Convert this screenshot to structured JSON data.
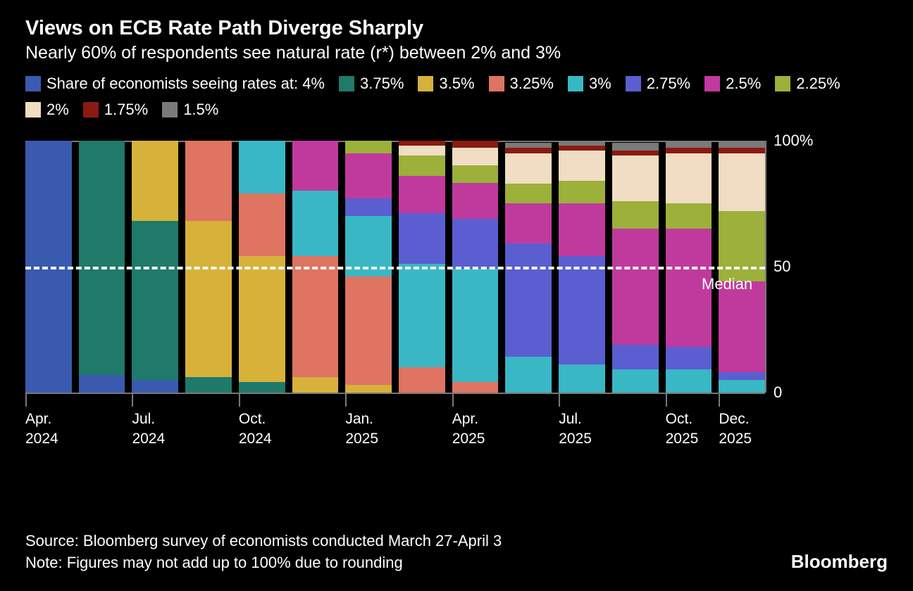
{
  "title": "Views on ECB Rate Path Diverge Sharply",
  "subtitle": "Nearly 60% of respondents see natural rate (r*) between 2% and 3%",
  "legend_prefix": "Share of economists seeing rates at: ",
  "series": [
    {
      "key": "r400",
      "label": "4%",
      "color": "#3a5ab0"
    },
    {
      "key": "r375",
      "label": "3.75%",
      "color": "#1f7a6a"
    },
    {
      "key": "r350",
      "label": "3.5%",
      "color": "#d6b23a"
    },
    {
      "key": "r325",
      "label": "3.25%",
      "color": "#de7461"
    },
    {
      "key": "r300",
      "label": "3%",
      "color": "#3ab7c4"
    },
    {
      "key": "r275",
      "label": "2.75%",
      "color": "#5a5ed1"
    },
    {
      "key": "r250",
      "label": "2.5%",
      "color": "#c03a9e"
    },
    {
      "key": "r225",
      "label": "2.25%",
      "color": "#9cb03a"
    },
    {
      "key": "r200",
      "label": "2%",
      "color": "#f0ddc3"
    },
    {
      "key": "r175",
      "label": "1.75%",
      "color": "#8a1a12"
    },
    {
      "key": "r150",
      "label": "1.5%",
      "color": "#7a7a7a"
    }
  ],
  "categories": [
    {
      "tick": true,
      "label": "Apr.\n2024"
    },
    {
      "tick": false,
      "label": ""
    },
    {
      "tick": true,
      "label": "Jul.\n2024"
    },
    {
      "tick": false,
      "label": ""
    },
    {
      "tick": true,
      "label": "Oct.\n2024"
    },
    {
      "tick": false,
      "label": ""
    },
    {
      "tick": true,
      "label": "Jan.\n2025"
    },
    {
      "tick": false,
      "label": ""
    },
    {
      "tick": true,
      "label": "Apr.\n2025"
    },
    {
      "tick": false,
      "label": ""
    },
    {
      "tick": true,
      "label": "Jul.\n2025"
    },
    {
      "tick": false,
      "label": ""
    },
    {
      "tick": true,
      "label": "Oct.\n2025"
    },
    {
      "tick": true,
      "label": "Dec.\n2025"
    }
  ],
  "data": [
    {
      "r400": 100,
      "r375": 0,
      "r350": 0,
      "r325": 0,
      "r300": 0,
      "r275": 0,
      "r250": 0,
      "r225": 0,
      "r200": 0,
      "r175": 0,
      "r150": 0
    },
    {
      "r400": 7,
      "r375": 93,
      "r350": 0,
      "r325": 0,
      "r300": 0,
      "r275": 0,
      "r250": 0,
      "r225": 0,
      "r200": 0,
      "r175": 0,
      "r150": 0
    },
    {
      "r400": 5,
      "r375": 63,
      "r350": 32,
      "r325": 0,
      "r300": 0,
      "r275": 0,
      "r250": 0,
      "r225": 0,
      "r200": 0,
      "r175": 0,
      "r150": 0
    },
    {
      "r400": 0,
      "r375": 6,
      "r350": 62,
      "r325": 32,
      "r300": 0,
      "r275": 0,
      "r250": 0,
      "r225": 0,
      "r200": 0,
      "r175": 0,
      "r150": 0
    },
    {
      "r400": 0,
      "r375": 4,
      "r350": 50,
      "r325": 25,
      "r300": 21,
      "r275": 0,
      "r250": 0,
      "r225": 0,
      "r200": 0,
      "r175": 0,
      "r150": 0
    },
    {
      "r400": 0,
      "r375": 0,
      "r350": 6,
      "r325": 48,
      "r300": 26,
      "r275": 0,
      "r250": 20,
      "r225": 0,
      "r200": 0,
      "r175": 0,
      "r150": 0
    },
    {
      "r400": 0,
      "r375": 0,
      "r350": 3,
      "r325": 43,
      "r300": 24,
      "r275": 7,
      "r250": 18,
      "r225": 5,
      "r200": 0,
      "r175": 0,
      "r150": 0
    },
    {
      "r400": 0,
      "r375": 0,
      "r350": 0,
      "r325": 10,
      "r300": 41,
      "r275": 20,
      "r250": 15,
      "r225": 8,
      "r200": 4,
      "r175": 2,
      "r150": 0
    },
    {
      "r400": 0,
      "r375": 0,
      "r350": 0,
      "r325": 4,
      "r300": 45,
      "r275": 20,
      "r250": 14,
      "r225": 7,
      "r200": 7,
      "r175": 3,
      "r150": 0
    },
    {
      "r400": 0,
      "r375": 0,
      "r350": 0,
      "r325": 0,
      "r300": 14,
      "r275": 45,
      "r250": 16,
      "r225": 8,
      "r200": 12,
      "r175": 2,
      "r150": 2
    },
    {
      "r400": 0,
      "r375": 0,
      "r350": 0,
      "r325": 0,
      "r300": 11,
      "r275": 43,
      "r250": 21,
      "r225": 9,
      "r200": 12,
      "r175": 2,
      "r150": 2
    },
    {
      "r400": 0,
      "r375": 0,
      "r350": 0,
      "r325": 0,
      "r300": 9,
      "r275": 10,
      "r250": 46,
      "r225": 11,
      "r200": 18,
      "r175": 2,
      "r150": 3
    },
    {
      "r400": 0,
      "r375": 0,
      "r350": 0,
      "r325": 0,
      "r300": 9,
      "r275": 9,
      "r250": 47,
      "r225": 10,
      "r200": 20,
      "r175": 2,
      "r150": 3
    },
    {
      "r400": 0,
      "r375": 0,
      "r350": 0,
      "r325": 0,
      "r300": 5,
      "r275": 3,
      "r250": 36,
      "r225": 28,
      "r200": 23,
      "r175": 2,
      "r150": 3
    }
  ],
  "y_axis": {
    "ticks": [
      {
        "value": 100,
        "label": "100%"
      },
      {
        "value": 50,
        "label": "50"
      },
      {
        "value": 0,
        "label": "0"
      }
    ],
    "min": 0,
    "max": 100
  },
  "median_line": {
    "value": 50,
    "label": "Median"
  },
  "source": "Source: Bloomberg survey of economists conducted March 27-April 3",
  "note": "Note: Figures may not add up to 100% due to rounding",
  "branding": "Bloomberg",
  "background_color": "#000000",
  "grid_color": "#777777"
}
